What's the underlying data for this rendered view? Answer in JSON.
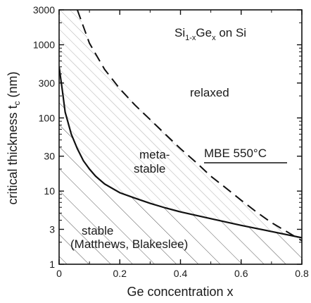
{
  "chart_data": {
    "type": "line",
    "xlabel": "Ge concentration x",
    "ylabel": "critical thickness t",
    "ylabel_sub": "c",
    "ylabel_unit": " (nm)",
    "xlim": [
      0,
      0.8
    ],
    "ylim": [
      1,
      3000
    ],
    "yscale": "log",
    "grid": false,
    "x_ticks": [
      0,
      0.2,
      0.4,
      0.6,
      0.8
    ],
    "x_tick_labels": [
      "0",
      "0.2",
      "0.4",
      "0.6",
      "0.8"
    ],
    "y_ticks": [
      1,
      3,
      10,
      30,
      100,
      300,
      1000,
      3000
    ],
    "y_tick_labels": [
      "1",
      "3",
      "10",
      "30",
      "100",
      "300",
      "1000",
      "3000"
    ],
    "series": [
      {
        "name": "MBE 550°C",
        "style": "dashed",
        "x": [
          0.06,
          0.1,
          0.15,
          0.2,
          0.25,
          0.3,
          0.35,
          0.4,
          0.45,
          0.5,
          0.55,
          0.6,
          0.65,
          0.7,
          0.75,
          0.8
        ],
        "y": [
          3000,
          1050,
          460,
          250,
          150,
          95,
          60,
          38,
          25,
          16,
          11,
          7.5,
          5.2,
          3.7,
          2.8,
          2.1
        ]
      },
      {
        "name": "Matthews, Blakeslee",
        "style": "solid",
        "x": [
          0,
          0.01,
          0.02,
          0.04,
          0.06,
          0.08,
          0.1,
          0.12,
          0.15,
          0.2,
          0.25,
          0.3,
          0.35,
          0.4,
          0.5,
          0.6,
          0.7,
          0.8
        ],
        "y": [
          500,
          250,
          120,
          60,
          38,
          26,
          20,
          16,
          12.5,
          9.5,
          8,
          6.8,
          5.9,
          5.2,
          4.2,
          3.4,
          2.8,
          2.3
        ]
      }
    ],
    "regions": {
      "stable": "stable",
      "stable_ref": "(Matthews, Blakeslee)",
      "metastable_line1": "meta-",
      "metastable_line2": "stable",
      "relaxed": "relaxed"
    },
    "annotations": {
      "material_si": "Si",
      "material_si_sub": "1-x",
      "material_ge": "Ge",
      "material_ge_sub": "x",
      "material_rest": " on Si",
      "mbe_label": "MBE 550°C"
    }
  }
}
